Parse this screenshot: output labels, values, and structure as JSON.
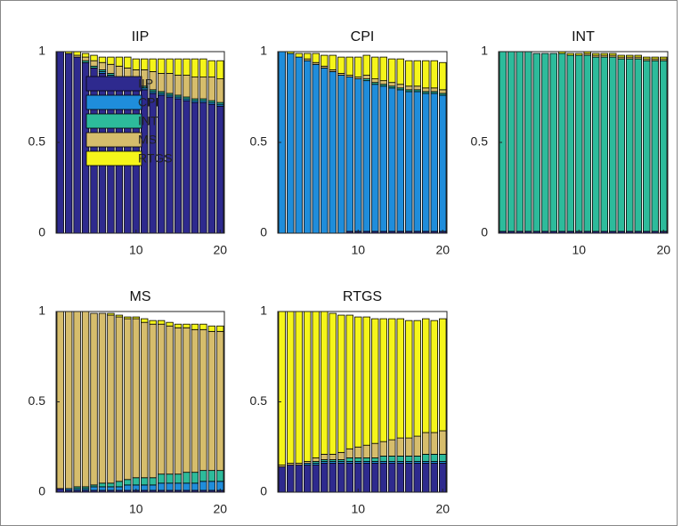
{
  "chart_data": [
    {
      "type": "bar",
      "stacked": true,
      "title": "IIP",
      "legend": "upper left",
      "x": [
        1,
        2,
        3,
        4,
        5,
        6,
        7,
        8,
        9,
        10,
        11,
        12,
        13,
        14,
        15,
        16,
        17,
        18,
        19,
        20
      ],
      "xlim": [
        0.5,
        20.5
      ],
      "xticks": [
        10,
        20
      ],
      "ylim": [
        0,
        1
      ],
      "yticks": [
        0,
        0.5,
        1
      ],
      "series": [
        {
          "name": "IIP",
          "color": "#2e2a8e",
          "values": [
            1.0,
            0.99,
            0.97,
            0.94,
            0.91,
            0.88,
            0.86,
            0.84,
            0.82,
            0.8,
            0.79,
            0.77,
            0.76,
            0.75,
            0.74,
            0.73,
            0.72,
            0.72,
            0.71,
            0.7
          ]
        },
        {
          "name": "CPI",
          "color": "#1f8ddb",
          "values": [
            0,
            0,
            0,
            0,
            0,
            0.01,
            0.01,
            0.01,
            0.01,
            0.01,
            0.01,
            0.01,
            0.01,
            0.01,
            0.01,
            0.01,
            0.01,
            0.01,
            0.01,
            0.01
          ]
        },
        {
          "name": "INT",
          "color": "#2dbb9b",
          "values": [
            0,
            0,
            0,
            0.01,
            0.01,
            0.01,
            0.01,
            0.01,
            0.01,
            0.01,
            0.01,
            0.01,
            0.01,
            0.01,
            0.01,
            0.01,
            0.01,
            0.01,
            0.01,
            0.01
          ]
        },
        {
          "name": "MS",
          "color": "#d6bd6c",
          "values": [
            0,
            0,
            0.01,
            0.02,
            0.03,
            0.04,
            0.05,
            0.06,
            0.07,
            0.08,
            0.09,
            0.1,
            0.1,
            0.11,
            0.11,
            0.12,
            0.12,
            0.12,
            0.13,
            0.13
          ]
        },
        {
          "name": "RTGS",
          "color": "#f5f51a",
          "values": [
            0,
            0.01,
            0.02,
            0.02,
            0.03,
            0.03,
            0.04,
            0.05,
            0.06,
            0.06,
            0.06,
            0.07,
            0.08,
            0.08,
            0.09,
            0.09,
            0.1,
            0.1,
            0.09,
            0.1
          ]
        }
      ]
    },
    {
      "type": "bar",
      "stacked": true,
      "title": "CPI",
      "x": [
        1,
        2,
        3,
        4,
        5,
        6,
        7,
        8,
        9,
        10,
        11,
        12,
        13,
        14,
        15,
        16,
        17,
        18,
        19,
        20
      ],
      "xlim": [
        0.5,
        20.5
      ],
      "xticks": [
        10,
        20
      ],
      "ylim": [
        0,
        1
      ],
      "yticks": [
        0,
        0.5,
        1
      ],
      "series": [
        {
          "name": "IIP",
          "color": "#2e2a8e",
          "values": [
            0,
            0,
            0,
            0,
            0,
            0,
            0,
            0,
            0.01,
            0.01,
            0.01,
            0.01,
            0.01,
            0.01,
            0.01,
            0.01,
            0.01,
            0.01,
            0.01,
            0.01
          ]
        },
        {
          "name": "CPI",
          "color": "#1f8ddb",
          "values": [
            1.0,
            0.99,
            0.97,
            0.95,
            0.93,
            0.91,
            0.89,
            0.87,
            0.85,
            0.84,
            0.83,
            0.81,
            0.8,
            0.79,
            0.78,
            0.77,
            0.77,
            0.76,
            0.76,
            0.75
          ]
        },
        {
          "name": "INT",
          "color": "#2dbb9b",
          "values": [
            0,
            0,
            0,
            0,
            0,
            0,
            0,
            0,
            0,
            0,
            0.01,
            0.01,
            0.01,
            0.01,
            0.01,
            0.01,
            0.01,
            0.01,
            0.01,
            0.01
          ]
        },
        {
          "name": "MS",
          "color": "#d6bd6c",
          "values": [
            0,
            0,
            0,
            0.01,
            0.01,
            0.01,
            0.01,
            0.01,
            0.01,
            0.01,
            0.02,
            0.02,
            0.02,
            0.02,
            0.02,
            0.02,
            0.02,
            0.02,
            0.02,
            0.02
          ]
        },
        {
          "name": "RTGS",
          "color": "#f5f51a",
          "values": [
            0,
            0.01,
            0.02,
            0.03,
            0.05,
            0.06,
            0.08,
            0.09,
            0.1,
            0.11,
            0.11,
            0.12,
            0.13,
            0.13,
            0.14,
            0.14,
            0.14,
            0.15,
            0.15,
            0.15
          ]
        }
      ]
    },
    {
      "type": "bar",
      "stacked": true,
      "title": "INT",
      "x": [
        1,
        2,
        3,
        4,
        5,
        6,
        7,
        8,
        9,
        10,
        11,
        12,
        13,
        14,
        15,
        16,
        17,
        18,
        19,
        20
      ],
      "xlim": [
        0.5,
        20.5
      ],
      "xticks": [
        10,
        20
      ],
      "ylim": [
        0,
        1
      ],
      "yticks": [
        0,
        0.5,
        1
      ],
      "series": [
        {
          "name": "IIP",
          "color": "#2e2a8e",
          "values": [
            0.01,
            0.01,
            0.01,
            0.01,
            0.01,
            0.01,
            0.01,
            0.01,
            0.01,
            0.01,
            0.01,
            0.01,
            0.01,
            0.01,
            0.01,
            0.01,
            0.01,
            0.01,
            0.01,
            0.01
          ]
        },
        {
          "name": "CPI",
          "color": "#1f8ddb",
          "values": [
            0,
            0,
            0,
            0,
            0,
            0,
            0,
            0,
            0,
            0,
            0,
            0,
            0,
            0,
            0,
            0,
            0,
            0,
            0,
            0
          ]
        },
        {
          "name": "INT",
          "color": "#2dbb9b",
          "values": [
            0.99,
            0.99,
            0.99,
            0.99,
            0.98,
            0.98,
            0.98,
            0.98,
            0.97,
            0.97,
            0.97,
            0.96,
            0.96,
            0.96,
            0.95,
            0.95,
            0.95,
            0.94,
            0.94,
            0.94
          ]
        },
        {
          "name": "MS",
          "color": "#d6bd6c",
          "values": [
            0,
            0,
            0,
            0,
            0,
            0,
            0,
            0,
            0,
            0,
            0.01,
            0.01,
            0.01,
            0.01,
            0.01,
            0.01,
            0.01,
            0.01,
            0.01,
            0.01
          ]
        },
        {
          "name": "RTGS",
          "color": "#f5f51a",
          "values": [
            0,
            0,
            0,
            0,
            0,
            0,
            0,
            0.01,
            0.01,
            0.01,
            0.01,
            0.01,
            0.01,
            0.01,
            0.01,
            0.01,
            0.01,
            0.01,
            0.01,
            0.01
          ]
        }
      ]
    },
    {
      "type": "bar",
      "stacked": true,
      "title": "MS",
      "x": [
        1,
        2,
        3,
        4,
        5,
        6,
        7,
        8,
        9,
        10,
        11,
        12,
        13,
        14,
        15,
        16,
        17,
        18,
        19,
        20
      ],
      "xlim": [
        0.5,
        20.5
      ],
      "xticks": [
        10,
        20
      ],
      "ylim": [
        0,
        1
      ],
      "yticks": [
        0,
        0.5,
        1
      ],
      "series": [
        {
          "name": "IIP",
          "color": "#2e2a8e",
          "values": [
            0.02,
            0.01,
            0.01,
            0.01,
            0.01,
            0.01,
            0.01,
            0.01,
            0.01,
            0.01,
            0.01,
            0.01,
            0.01,
            0.01,
            0.01,
            0.01,
            0.01,
            0.01,
            0.01,
            0.01
          ]
        },
        {
          "name": "CPI",
          "color": "#1f8ddb",
          "values": [
            0,
            0.01,
            0.01,
            0.01,
            0.02,
            0.02,
            0.02,
            0.02,
            0.03,
            0.03,
            0.03,
            0.03,
            0.04,
            0.04,
            0.04,
            0.04,
            0.04,
            0.05,
            0.05,
            0.05
          ]
        },
        {
          "name": "INT",
          "color": "#2dbb9b",
          "values": [
            0,
            0,
            0.01,
            0.01,
            0.01,
            0.02,
            0.02,
            0.03,
            0.03,
            0.04,
            0.04,
            0.04,
            0.05,
            0.05,
            0.05,
            0.06,
            0.06,
            0.06,
            0.06,
            0.06
          ]
        },
        {
          "name": "MS",
          "color": "#d6bd6c",
          "values": [
            0.98,
            0.98,
            0.97,
            0.97,
            0.95,
            0.94,
            0.93,
            0.91,
            0.89,
            0.88,
            0.86,
            0.85,
            0.83,
            0.82,
            0.81,
            0.8,
            0.79,
            0.78,
            0.77,
            0.77
          ]
        },
        {
          "name": "RTGS",
          "color": "#f5f51a",
          "values": [
            0,
            0,
            0,
            0,
            0,
            0,
            0.01,
            0.01,
            0.01,
            0.01,
            0.02,
            0.02,
            0.02,
            0.02,
            0.02,
            0.02,
            0.03,
            0.03,
            0.03,
            0.03
          ]
        }
      ]
    },
    {
      "type": "bar",
      "stacked": true,
      "title": "RTGS",
      "x": [
        1,
        2,
        3,
        4,
        5,
        6,
        7,
        8,
        9,
        10,
        11,
        12,
        13,
        14,
        15,
        16,
        17,
        18,
        19,
        20
      ],
      "xlim": [
        0.5,
        20.5
      ],
      "xticks": [
        10,
        20
      ],
      "ylim": [
        0,
        1
      ],
      "yticks": [
        0,
        0.5,
        1
      ],
      "series": [
        {
          "name": "IIP",
          "color": "#2e2a8e",
          "values": [
            0.14,
            0.15,
            0.15,
            0.15,
            0.15,
            0.16,
            0.16,
            0.16,
            0.16,
            0.16,
            0.16,
            0.16,
            0.16,
            0.16,
            0.16,
            0.16,
            0.16,
            0.16,
            0.16,
            0.16
          ]
        },
        {
          "name": "CPI",
          "color": "#1f8ddb",
          "values": [
            0,
            0,
            0,
            0.01,
            0.01,
            0.01,
            0.01,
            0.01,
            0.01,
            0.01,
            0.01,
            0.01,
            0.01,
            0.01,
            0.01,
            0.01,
            0.01,
            0.01,
            0.01,
            0.01
          ]
        },
        {
          "name": "INT",
          "color": "#2dbb9b",
          "values": [
            0,
            0,
            0,
            0,
            0.01,
            0.01,
            0.01,
            0.01,
            0.02,
            0.02,
            0.02,
            0.02,
            0.03,
            0.03,
            0.03,
            0.03,
            0.03,
            0.04,
            0.04,
            0.04
          ]
        },
        {
          "name": "MS",
          "color": "#d6bd6c",
          "values": [
            0.01,
            0.01,
            0.01,
            0.01,
            0.02,
            0.03,
            0.03,
            0.04,
            0.05,
            0.06,
            0.07,
            0.08,
            0.08,
            0.09,
            0.1,
            0.1,
            0.11,
            0.12,
            0.12,
            0.13
          ]
        },
        {
          "name": "RTGS",
          "color": "#f5f51a",
          "values": [
            0.85,
            0.84,
            0.84,
            0.83,
            0.81,
            0.79,
            0.78,
            0.76,
            0.74,
            0.72,
            0.71,
            0.69,
            0.68,
            0.67,
            0.66,
            0.65,
            0.64,
            0.63,
            0.62,
            0.62
          ]
        }
      ]
    }
  ]
}
